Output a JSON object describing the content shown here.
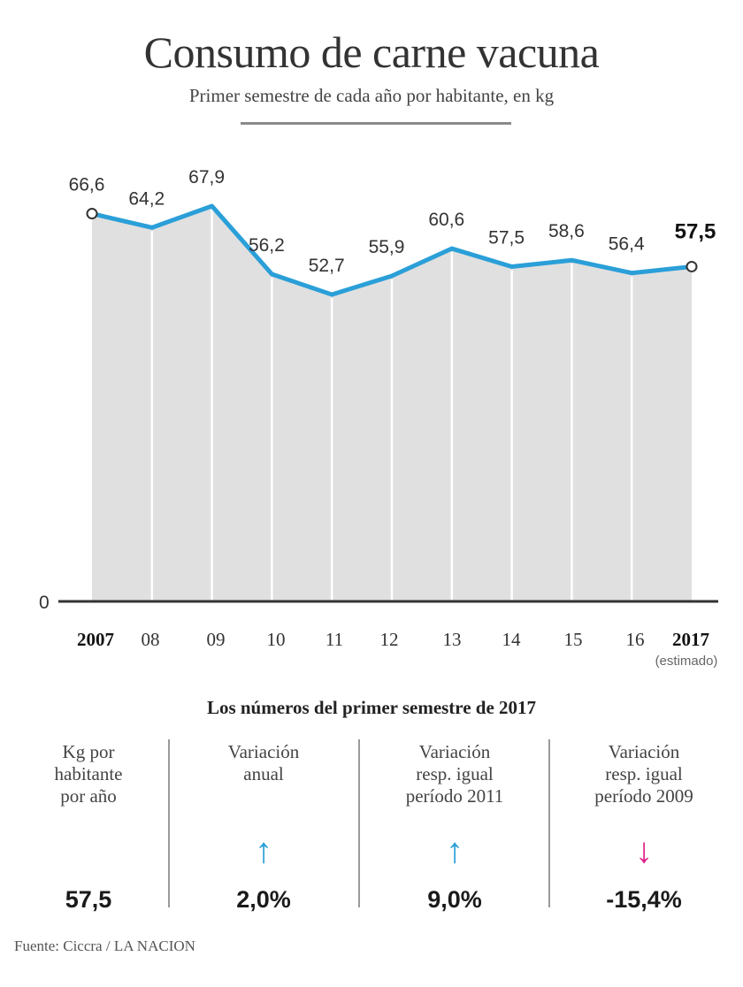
{
  "title": "Consumo de carne vacuna",
  "subtitle": "Primer semestre de cada año por habitante, en kg",
  "chart_data": {
    "type": "area",
    "title": "Consumo de carne vacuna",
    "subtitle": "Primer semestre de cada año por habitante, en kg",
    "categories": [
      "2007",
      "08",
      "09",
      "10",
      "11",
      "12",
      "13",
      "14",
      "15",
      "16",
      "2017"
    ],
    "values": [
      66.6,
      64.2,
      67.9,
      56.2,
      52.7,
      55.9,
      60.6,
      57.5,
      58.6,
      56.4,
      57.5
    ],
    "value_labels": [
      "66,6",
      "64,2",
      "67,9",
      "56,2",
      "52,7",
      "55,9",
      "60,6",
      "57,5",
      "58,6",
      "56,4",
      "57,5"
    ],
    "bold_categories": [
      "2007",
      "2017"
    ],
    "last_note": "(estimado)",
    "y_zero_label": "0",
    "line_color": "#2a9fd8",
    "fill_color": "#e0e0e0",
    "grid": false
  },
  "stats": {
    "title": "Los números del primer semestre de 2017",
    "items": [
      {
        "label": "Kg por\nhabitante\npor año",
        "arrow": "",
        "arrow_color": "",
        "value": "57,5"
      },
      {
        "label": "Variación\nanual",
        "arrow": "↑",
        "arrow_color": "#2a9fd8",
        "value": "2,0%"
      },
      {
        "label": "Variación\nresp. igual\nperíodo 2011",
        "arrow": "↑",
        "arrow_color": "#2a9fd8",
        "value": "9,0%"
      },
      {
        "label": "Variación\nresp. igual\nperíodo 2009",
        "arrow": "↓",
        "arrow_color": "#e0218a",
        "value": "-15,4%"
      }
    ]
  },
  "source": "Fuente: Ciccra / LA NACION"
}
